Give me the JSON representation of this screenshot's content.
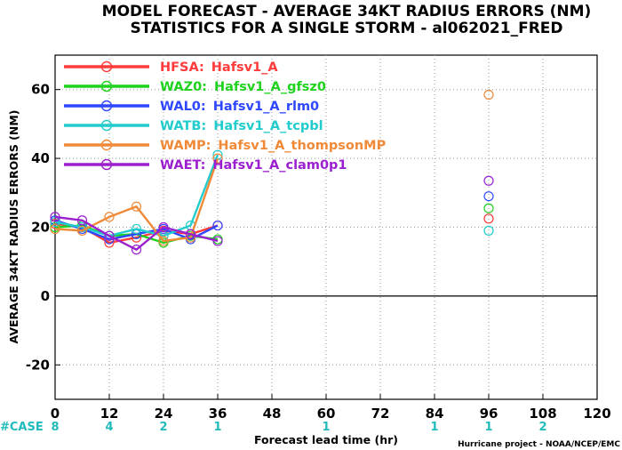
{
  "title_lines": [
    "MODEL FORECAST - AVERAGE 34KT RADIUS ERRORS (NM)",
    "STATISTICS FOR A SINGLE STORM - al062021_FRED"
  ],
  "case_label": "#CASE",
  "credit": "Hurricane project - NOAA/NCEP/EMC",
  "chart_data": {
    "type": "line",
    "xlabel": "Forecast lead time (hr)",
    "ylabel": "AVERAGE 34KT RADIUS ERRORS (NM)",
    "xlim": [
      0,
      120
    ],
    "ylim": [
      -30,
      70
    ],
    "xticks": [
      0,
      12,
      24,
      36,
      48,
      60,
      72,
      84,
      96,
      108,
      120
    ],
    "yticks": [
      -20,
      0,
      20,
      40,
      60
    ],
    "grid": true,
    "legend_position": "top-left",
    "cases": [
      {
        "x": 0,
        "label": "8"
      },
      {
        "x": 12,
        "label": "4"
      },
      {
        "x": 24,
        "label": "2"
      },
      {
        "x": 36,
        "label": "1"
      },
      {
        "x": 60,
        "label": "1"
      },
      {
        "x": 84,
        "label": "1"
      },
      {
        "x": 96,
        "label": "1"
      },
      {
        "x": 108,
        "label": "2"
      }
    ],
    "series": [
      {
        "id": "HFSA",
        "name": "Hafsv1_A",
        "color": "#ff3b3b",
        "x": [
          0,
          6,
          12,
          18,
          24,
          30,
          36,
          96
        ],
        "y": [
          21,
          20,
          15.5,
          17,
          19,
          18,
          20.5,
          22.5
        ]
      },
      {
        "id": "WAZ0",
        "name": "Hafsv1_A_gfsz0",
        "color": "#1ed21e",
        "x": [
          0,
          6,
          12,
          18,
          24,
          30,
          36,
          96
        ],
        "y": [
          20,
          20.5,
          17.5,
          18,
          15.5,
          17.5,
          16.5,
          25.5
        ]
      },
      {
        "id": "WAL0",
        "name": "Hafsv1_A_rlm0",
        "color": "#2f47ff",
        "x": [
          0,
          6,
          12,
          18,
          24,
          30,
          36,
          96
        ],
        "y": [
          22,
          19.5,
          16.5,
          18,
          19.5,
          16.5,
          20.5,
          29
        ]
      },
      {
        "id": "WATB",
        "name": "Hafsv1_A_tcpbl",
        "color": "#22cccc",
        "x": [
          0,
          6,
          12,
          18,
          24,
          30,
          36,
          96
        ],
        "y": [
          21.5,
          20,
          17.5,
          19.5,
          17.5,
          20.5,
          41,
          19
        ]
      },
      {
        "id": "WAMP",
        "name": "Hafsv1_A_thompsonMP",
        "color": "#f08a38",
        "x": [
          0,
          6,
          12,
          18,
          24,
          30,
          36,
          96
        ],
        "y": [
          19.5,
          19,
          23,
          26,
          16,
          17,
          40,
          58.5
        ]
      },
      {
        "id": "WAET",
        "name": "Hafsv1_A_clam0p1",
        "color": "#9b1fcf",
        "x": [
          0,
          6,
          12,
          18,
          24,
          30,
          36,
          96
        ],
        "y": [
          23,
          22,
          17.5,
          13.5,
          20,
          18,
          16,
          33.5
        ]
      }
    ]
  }
}
